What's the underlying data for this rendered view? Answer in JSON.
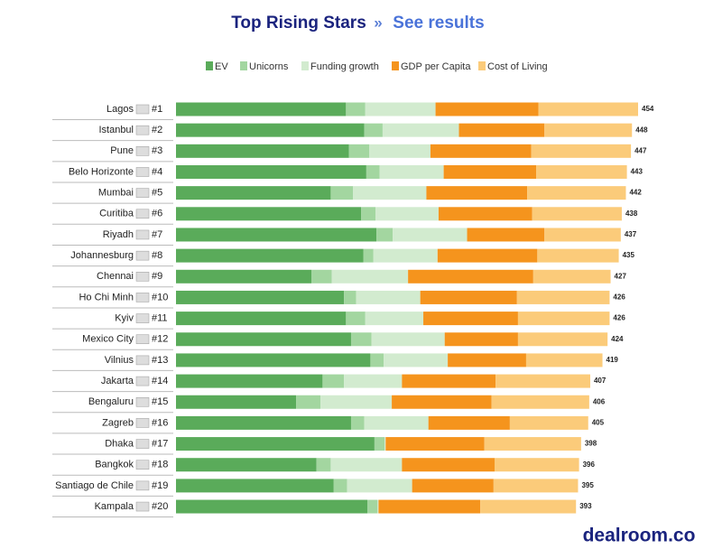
{
  "header": {
    "title": "Top Rising Stars",
    "separator": "»",
    "link": "See results"
  },
  "chart_data": {
    "type": "stacked-bar-horizontal",
    "categories": [
      "Lagos",
      "Istanbul",
      "Pune",
      "Belo Horizonte",
      "Mumbai",
      "Curitiba",
      "Riyadh",
      "Johannesburg",
      "Chennai",
      "Ho Chi Minh",
      "Kyiv",
      "Mexico City",
      "Vilnius",
      "Jakarta",
      "Bengaluru",
      "Zagreb",
      "Dhaka",
      "Bangkok",
      "Santiago de Chile",
      "Kampala"
    ],
    "ranks": [
      "#1",
      "#2",
      "#3",
      "#4",
      "#5",
      "#6",
      "#7",
      "#8",
      "#9",
      "#10",
      "#11",
      "#12",
      "#13",
      "#14",
      "#15",
      "#16",
      "#17",
      "#18",
      "#19",
      "#20"
    ],
    "series": [
      {
        "name": "EV",
        "color": "#5aab5a",
        "values": [
          167,
          185,
          170,
          187,
          152,
          182,
          197,
          184,
          133,
          165,
          167,
          172,
          191,
          144,
          118,
          172,
          195,
          138,
          155,
          188
        ]
      },
      {
        "name": "Unicorns",
        "color": "#a3d6a0",
        "values": [
          19,
          18,
          20,
          13,
          22,
          14,
          16,
          10,
          20,
          12,
          19,
          20,
          13,
          21,
          24,
          13,
          10,
          14,
          13,
          10
        ]
      },
      {
        "name": "Funding growth",
        "color": "#d2ebcf",
        "values": [
          69,
          75,
          60,
          63,
          72,
          62,
          73,
          63,
          75,
          63,
          57,
          72,
          63,
          57,
          70,
          63,
          1,
          70,
          64,
          1
        ]
      },
      {
        "name": "GDP per Capita",
        "color": "#f5941d",
        "values": [
          101,
          84,
          99,
          91,
          99,
          92,
          76,
          98,
          123,
          95,
          93,
          72,
          77,
          92,
          98,
          80,
          97,
          91,
          80,
          100
        ]
      },
      {
        "name": "Cost of Living",
        "color": "#fbcb7a",
        "values": [
          98,
          86,
          98,
          89,
          97,
          88,
          75,
          80,
          76,
          91,
          90,
          88,
          75,
          93,
          96,
          77,
          95,
          83,
          83,
          94
        ]
      }
    ],
    "totals": [
      454,
      448,
      447,
      443,
      442,
      438,
      437,
      435,
      427,
      426,
      426,
      424,
      419,
      407,
      406,
      405,
      398,
      396,
      395,
      393
    ]
  },
  "footer": {
    "brand": "dealroom.co"
  }
}
